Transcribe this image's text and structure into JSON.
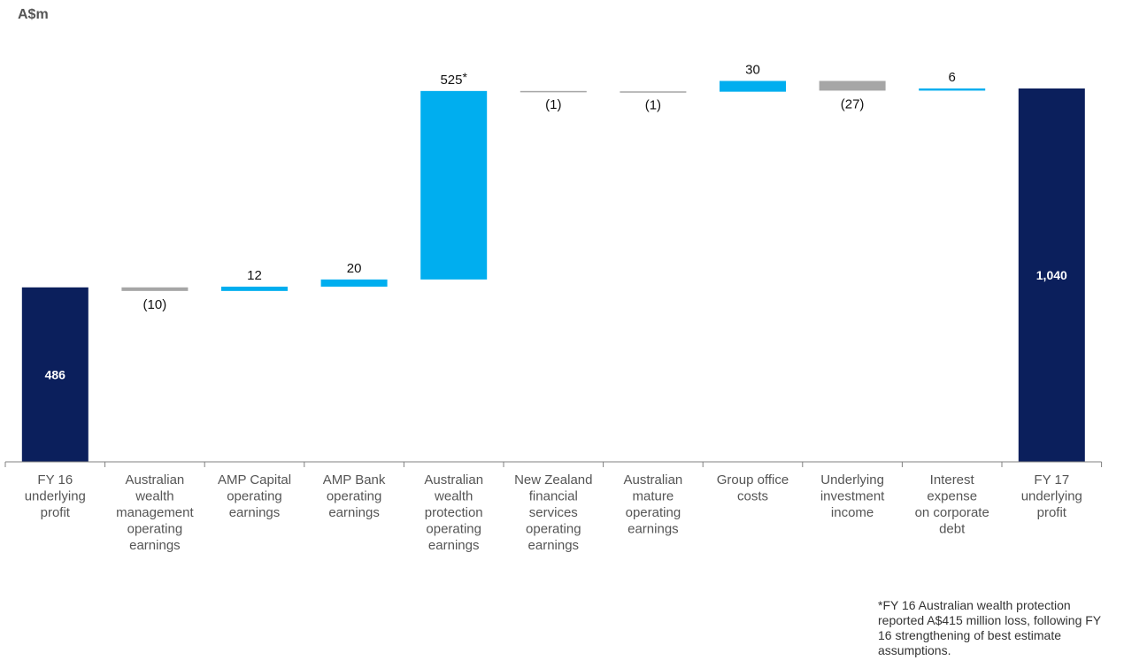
{
  "chart_data": {
    "type": "bar",
    "subtype": "waterfall",
    "unit_label": "A$m",
    "categories": [
      [
        "FY 16",
        "underlying",
        "profit"
      ],
      [
        "Australian",
        "wealth",
        "management",
        "operating",
        "earnings"
      ],
      [
        "AMP Capital",
        "operating",
        "earnings"
      ],
      [
        "AMP Bank",
        "operating",
        "earnings"
      ],
      [
        "Australian",
        "wealth",
        "protection",
        "operating",
        "earnings"
      ],
      [
        "New Zealand",
        "financial",
        "services",
        "operating",
        "earnings"
      ],
      [
        "Australian",
        "mature",
        "operating",
        "earnings"
      ],
      [
        "Group office",
        "costs"
      ],
      [
        "Underlying",
        "investment",
        "income"
      ],
      [
        "Interest",
        "expense",
        "on corporate",
        "debt"
      ],
      [
        "FY 17",
        "underlying",
        "profit"
      ]
    ],
    "values": [
      486,
      -10,
      12,
      20,
      525,
      -1,
      -1,
      30,
      -27,
      6,
      1040
    ],
    "kinds": [
      "total",
      "delta",
      "delta",
      "delta",
      "delta",
      "delta",
      "delta",
      "delta",
      "delta",
      "delta",
      "total"
    ],
    "labels": [
      "486",
      "(10)",
      "12",
      "20",
      "525",
      "(1)",
      "(1)",
      "30",
      "(27)",
      "6",
      "1,040"
    ],
    "label_markers": [
      "",
      "",
      "",
      "",
      "*",
      "",
      "",
      "",
      "",
      "",
      ""
    ],
    "ylim": [
      0,
      1100
    ],
    "grid": false,
    "colors": {
      "total": "#0b1f5c",
      "increase": "#00aeef",
      "decrease": "#a6a6a6",
      "axis": "#808080",
      "label": "#111111",
      "total_label": "#ffffff",
      "category_text": "#555555"
    }
  },
  "footnote": "*FY 16 Australian wealth protection reported A$415 million loss, following FY 16 strengthening of best estimate assumptions."
}
